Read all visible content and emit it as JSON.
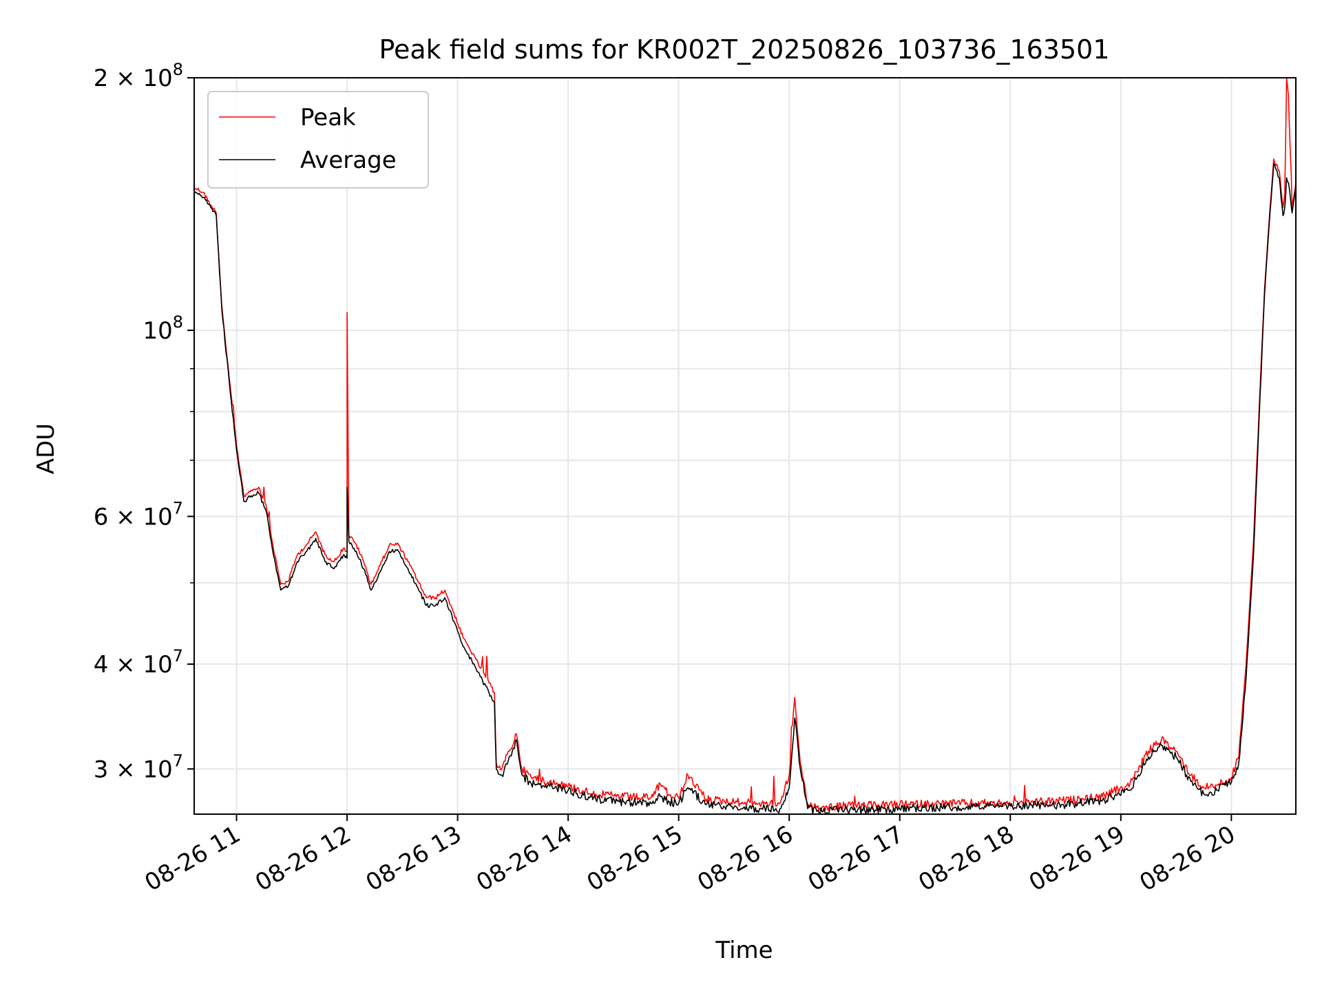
{
  "chart_data": {
    "type": "line",
    "title": "Peak field sums for KR002T_20250826_103736_163501",
    "xlabel": "Time",
    "ylabel": "ADU",
    "y_scale": "log",
    "ylim": [
      26500000,
      200000000
    ],
    "xlim": [
      "2025-08-26 10:37",
      "2025-08-26 20:35"
    ],
    "grid": true,
    "legend_position": "upper-left",
    "x_tick_labels": [
      "08-26 11",
      "08-26 12",
      "08-26 13",
      "08-26 14",
      "08-26 15",
      "08-26 16",
      "08-26 17",
      "08-26 18",
      "08-26 19",
      "08-26 20"
    ],
    "x_ticks": [
      "2025-08-26 11:00",
      "2025-08-26 12:00",
      "2025-08-26 13:00",
      "2025-08-26 14:00",
      "2025-08-26 15:00",
      "2025-08-26 16:00",
      "2025-08-26 17:00",
      "2025-08-26 18:00",
      "2025-08-26 19:00",
      "2025-08-26 20:00"
    ],
    "y_ticks_major": [
      {
        "value": 200000000,
        "mantissa": "2",
        "times": "×",
        "base": "10",
        "exp": "8"
      },
      {
        "value": 100000000,
        "mantissa": "",
        "times": "",
        "base": "10",
        "exp": "8"
      },
      {
        "value": 60000000,
        "mantissa": "6",
        "times": "×",
        "base": "10",
        "exp": "7"
      },
      {
        "value": 40000000,
        "mantissa": "4",
        "times": "×",
        "base": "10",
        "exp": "7"
      },
      {
        "value": 30000000,
        "mantissa": "3",
        "times": "×",
        "base": "10",
        "exp": "7"
      }
    ],
    "y_ticks_minor": [
      200000000,
      100000000,
      90000000,
      80000000,
      70000000,
      60000000,
      50000000,
      40000000,
      30000000
    ],
    "series": [
      {
        "name": "Peak",
        "color": "#ff0000",
        "x": [
          "2025-08-26 10:37",
          "2025-08-26 10:42",
          "2025-08-26 10:46",
          "2025-08-26 10:49",
          "2025-08-26 10:52",
          "2025-08-26 10:56",
          "2025-08-26 11:00",
          "2025-08-26 11:04",
          "2025-08-26 11:08",
          "2025-08-26 11:12",
          "2025-08-26 11:16",
          "2025-08-26 11:20",
          "2025-08-26 11:24",
          "2025-08-26 11:28",
          "2025-08-26 11:33",
          "2025-08-26 11:38",
          "2025-08-26 11:43",
          "2025-08-26 11:48",
          "2025-08-26 11:53",
          "2025-08-26 11:58",
          "2025-08-26 12:00",
          "2025-08-26 12:00",
          "2025-08-26 12:01",
          "2025-08-26 12:05",
          "2025-08-26 12:09",
          "2025-08-26 12:13",
          "2025-08-26 12:18",
          "2025-08-26 12:23",
          "2025-08-26 12:28",
          "2025-08-26 12:33",
          "2025-08-26 12:38",
          "2025-08-26 12:43",
          "2025-08-26 12:48",
          "2025-08-26 12:53",
          "2025-08-26 12:58",
          "2025-08-26 13:03",
          "2025-08-26 13:10",
          "2025-08-26 13:17",
          "2025-08-26 13:20",
          "2025-08-26 13:21",
          "2025-08-26 13:24",
          "2025-08-26 13:28",
          "2025-08-26 13:32",
          "2025-08-26 13:35",
          "2025-08-26 13:40",
          "2025-08-26 13:50",
          "2025-08-26 14:00",
          "2025-08-26 14:15",
          "2025-08-26 14:30",
          "2025-08-26 14:45",
          "2025-08-26 14:50",
          "2025-08-26 14:55",
          "2025-08-26 15:00",
          "2025-08-26 15:05",
          "2025-08-26 15:15",
          "2025-08-26 15:30",
          "2025-08-26 15:45",
          "2025-08-26 15:55",
          "2025-08-26 16:00",
          "2025-08-26 16:03",
          "2025-08-26 16:06",
          "2025-08-26 16:10",
          "2025-08-26 16:15",
          "2025-08-26 16:30",
          "2025-08-26 17:00",
          "2025-08-26 17:30",
          "2025-08-26 18:00",
          "2025-08-26 18:30",
          "2025-08-26 18:50",
          "2025-08-26 19:05",
          "2025-08-26 19:15",
          "2025-08-26 19:22",
          "2025-08-26 19:30",
          "2025-08-26 19:38",
          "2025-08-26 19:45",
          "2025-08-26 19:52",
          "2025-08-26 20:00",
          "2025-08-26 20:04",
          "2025-08-26 20:08",
          "2025-08-26 20:12",
          "2025-08-26 20:15",
          "2025-08-26 20:18",
          "2025-08-26 20:21",
          "2025-08-26 20:23",
          "2025-08-26 20:26",
          "2025-08-26 20:28",
          "2025-08-26 20:29",
          "2025-08-26 20:30",
          "2025-08-26 20:31",
          "2025-08-26 20:33",
          "2025-08-26 20:35"
        ],
        "values": [
          148000000,
          146000000,
          141000000,
          138000000,
          107000000,
          88000000,
          73000000,
          63500000,
          64500000,
          65000000,
          62000000,
          55000000,
          49800000,
          50200000,
          54000000,
          55500000,
          57500000,
          54000000,
          53000000,
          55000000,
          54500000,
          105000000,
          57000000,
          55500000,
          53000000,
          49800000,
          52500000,
          55500000,
          55500000,
          53000000,
          50500000,
          48000000,
          48000000,
          49000000,
          46000000,
          43000000,
          40500000,
          38000000,
          37000000,
          30500000,
          30000000,
          31500000,
          33000000,
          30000000,
          29300000,
          29000000,
          28600000,
          28000000,
          27800000,
          27700000,
          28800000,
          27900000,
          27700000,
          29500000,
          27600000,
          27400000,
          27300000,
          27300000,
          29500000,
          36500000,
          30500000,
          27300000,
          27000000,
          27100000,
          27200000,
          27300000,
          27300000,
          27500000,
          27800000,
          28800000,
          31500000,
          32500000,
          31500000,
          29500000,
          28500000,
          28700000,
          29300000,
          31000000,
          40000000,
          56000000,
          80000000,
          112000000,
          140000000,
          160000000,
          155000000,
          140000000,
          145000000,
          200000000,
          190000000,
          140000000,
          150000000
        ]
      },
      {
        "name": "Average",
        "color": "#000000",
        "x": [
          "2025-08-26 10:37",
          "2025-08-26 10:42",
          "2025-08-26 10:46",
          "2025-08-26 10:49",
          "2025-08-26 10:52",
          "2025-08-26 10:56",
          "2025-08-26 11:00",
          "2025-08-26 11:04",
          "2025-08-26 11:08",
          "2025-08-26 11:12",
          "2025-08-26 11:16",
          "2025-08-26 11:20",
          "2025-08-26 11:24",
          "2025-08-26 11:28",
          "2025-08-26 11:33",
          "2025-08-26 11:38",
          "2025-08-26 11:43",
          "2025-08-26 11:48",
          "2025-08-26 11:53",
          "2025-08-26 11:58",
          "2025-08-26 12:00",
          "2025-08-26 12:00",
          "2025-08-26 12:01",
          "2025-08-26 12:05",
          "2025-08-26 12:09",
          "2025-08-26 12:13",
          "2025-08-26 12:18",
          "2025-08-26 12:23",
          "2025-08-26 12:28",
          "2025-08-26 12:33",
          "2025-08-26 12:38",
          "2025-08-26 12:43",
          "2025-08-26 12:48",
          "2025-08-26 12:53",
          "2025-08-26 12:58",
          "2025-08-26 13:03",
          "2025-08-26 13:10",
          "2025-08-26 13:17",
          "2025-08-26 13:20",
          "2025-08-26 13:21",
          "2025-08-26 13:24",
          "2025-08-26 13:28",
          "2025-08-26 13:32",
          "2025-08-26 13:35",
          "2025-08-26 13:40",
          "2025-08-26 13:50",
          "2025-08-26 14:00",
          "2025-08-26 14:15",
          "2025-08-26 14:30",
          "2025-08-26 14:45",
          "2025-08-26 14:50",
          "2025-08-26 14:55",
          "2025-08-26 15:00",
          "2025-08-26 15:05",
          "2025-08-26 15:15",
          "2025-08-26 15:30",
          "2025-08-26 15:45",
          "2025-08-26 15:55",
          "2025-08-26 16:00",
          "2025-08-26 16:03",
          "2025-08-26 16:06",
          "2025-08-26 16:10",
          "2025-08-26 16:15",
          "2025-08-26 16:30",
          "2025-08-26 17:00",
          "2025-08-26 17:30",
          "2025-08-26 18:00",
          "2025-08-26 18:30",
          "2025-08-26 18:50",
          "2025-08-26 19:05",
          "2025-08-26 19:15",
          "2025-08-26 19:22",
          "2025-08-26 19:30",
          "2025-08-26 19:38",
          "2025-08-26 19:45",
          "2025-08-26 19:52",
          "2025-08-26 20:00",
          "2025-08-26 20:04",
          "2025-08-26 20:08",
          "2025-08-26 20:12",
          "2025-08-26 20:15",
          "2025-08-26 20:18",
          "2025-08-26 20:21",
          "2025-08-26 20:23",
          "2025-08-26 20:26",
          "2025-08-26 20:28",
          "2025-08-26 20:29",
          "2025-08-26 20:30",
          "2025-08-26 20:31",
          "2025-08-26 20:33",
          "2025-08-26 20:35"
        ],
        "values": [
          147000000,
          144000000,
          140000000,
          137000000,
          106000000,
          87000000,
          72000000,
          62500000,
          63500000,
          64000000,
          61000000,
          54000000,
          49000000,
          49500000,
          53000000,
          54500000,
          56500000,
          53000000,
          52000000,
          54000000,
          53500000,
          65000000,
          56000000,
          54500000,
          52000000,
          49000000,
          51500000,
          54500000,
          54500000,
          52000000,
          49500000,
          47000000,
          47000000,
          48000000,
          45000000,
          42000000,
          39500000,
          37000000,
          36000000,
          30000000,
          29500000,
          31000000,
          32500000,
          29500000,
          28800000,
          28600000,
          28300000,
          27600000,
          27400000,
          27300000,
          27800000,
          27400000,
          27300000,
          28500000,
          27200000,
          27000000,
          26900000,
          26900000,
          28500000,
          34500000,
          30000000,
          26900000,
          26700000,
          26800000,
          26900000,
          27000000,
          27100000,
          27200000,
          27500000,
          28300000,
          31000000,
          32000000,
          31000000,
          29000000,
          28000000,
          28300000,
          28900000,
          30500000,
          38500000,
          54000000,
          78000000,
          110000000,
          138000000,
          158000000,
          152000000,
          137000000,
          140000000,
          152000000,
          150000000,
          138000000,
          148000000
        ]
      }
    ]
  }
}
